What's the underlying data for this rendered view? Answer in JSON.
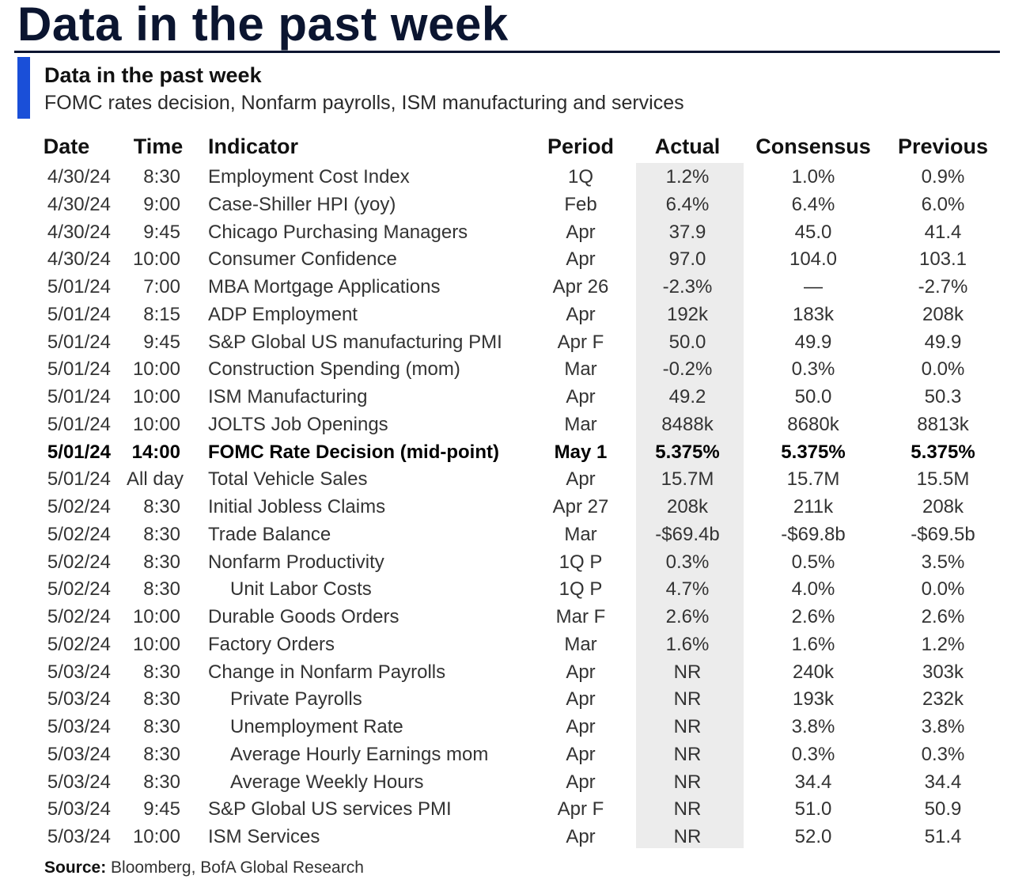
{
  "title": "Data in the past week",
  "subtitle": "Data in the past week",
  "description": "FOMC rates decision, Nonfarm payrolls, ISM manufacturing and services",
  "colors": {
    "accent": "#1a4fd8",
    "title": "#0b1530",
    "actual_shade": "#ececec"
  },
  "columns": {
    "date": "Date",
    "time": "Time",
    "indicator": "Indicator",
    "period": "Period",
    "actual": "Actual",
    "consensus": "Consensus",
    "previous": "Previous"
  },
  "rows": [
    {
      "date": "4/30/24",
      "time": "8:30",
      "indicator": "Employment Cost Index",
      "period": "1Q",
      "actual": "1.2%",
      "consensus": "1.0%",
      "previous": "0.9%"
    },
    {
      "date": "4/30/24",
      "time": "9:00",
      "indicator": "Case-Shiller HPI (yoy)",
      "period": "Feb",
      "actual": "6.4%",
      "consensus": "6.4%",
      "previous": "6.0%"
    },
    {
      "date": "4/30/24",
      "time": "9:45",
      "indicator": "Chicago Purchasing Managers",
      "period": "Apr",
      "actual": "37.9",
      "consensus": "45.0",
      "previous": "41.4"
    },
    {
      "date": "4/30/24",
      "time": "10:00",
      "indicator": "Consumer Confidence",
      "period": "Apr",
      "actual": "97.0",
      "consensus": "104.0",
      "previous": "103.1"
    },
    {
      "date": "5/01/24",
      "time": "7:00",
      "indicator": "MBA Mortgage Applications",
      "period": "Apr 26",
      "actual": "-2.3%",
      "consensus": "—",
      "previous": "-2.7%"
    },
    {
      "date": "5/01/24",
      "time": "8:15",
      "indicator": "ADP Employment",
      "period": "Apr",
      "actual": "192k",
      "consensus": "183k",
      "previous": "208k"
    },
    {
      "date": "5/01/24",
      "time": "9:45",
      "indicator": "S&P Global US manufacturing PMI",
      "period": "Apr F",
      "actual": "50.0",
      "consensus": "49.9",
      "previous": "49.9"
    },
    {
      "date": "5/01/24",
      "time": "10:00",
      "indicator": "Construction Spending (mom)",
      "period": "Mar",
      "actual": "-0.2%",
      "consensus": "0.3%",
      "previous": "0.0%"
    },
    {
      "date": "5/01/24",
      "time": "10:00",
      "indicator": "ISM Manufacturing",
      "period": "Apr",
      "actual": "49.2",
      "consensus": "50.0",
      "previous": "50.3"
    },
    {
      "date": "5/01/24",
      "time": "10:00",
      "indicator": "JOLTS Job Openings",
      "period": "Mar",
      "actual": "8488k",
      "consensus": "8680k",
      "previous": "8813k"
    },
    {
      "date": "5/01/24",
      "time": "14:00",
      "indicator": "FOMC Rate Decision (mid-point)",
      "period": "May 1",
      "actual": "5.375%",
      "consensus": "5.375%",
      "previous": "5.375%",
      "bold": true
    },
    {
      "date": "5/01/24",
      "time": "All day",
      "indicator": "Total Vehicle Sales",
      "period": "Apr",
      "actual": "15.7M",
      "consensus": "15.7M",
      "previous": "15.5M"
    },
    {
      "date": "5/02/24",
      "time": "8:30",
      "indicator": "Initial Jobless Claims",
      "period": "Apr 27",
      "actual": "208k",
      "consensus": "211k",
      "previous": "208k"
    },
    {
      "date": "5/02/24",
      "time": "8:30",
      "indicator": "Trade Balance",
      "period": "Mar",
      "actual": "-$69.4b",
      "consensus": "-$69.8b",
      "previous": "-$69.5b"
    },
    {
      "date": "5/02/24",
      "time": "8:30",
      "indicator": "Nonfarm Productivity",
      "period": "1Q P",
      "actual": "0.3%",
      "consensus": "0.5%",
      "previous": "3.5%"
    },
    {
      "date": "5/02/24",
      "time": "8:30",
      "indicator": "Unit Labor Costs",
      "period": "1Q P",
      "actual": "4.7%",
      "consensus": "4.0%",
      "previous": "0.0%",
      "indent": true
    },
    {
      "date": "5/02/24",
      "time": "10:00",
      "indicator": "Durable Goods Orders",
      "period": "Mar F",
      "actual": "2.6%",
      "consensus": "2.6%",
      "previous": "2.6%"
    },
    {
      "date": "5/02/24",
      "time": "10:00",
      "indicator": "Factory Orders",
      "period": "Mar",
      "actual": "1.6%",
      "consensus": "1.6%",
      "previous": "1.2%"
    },
    {
      "date": "5/03/24",
      "time": "8:30",
      "indicator": "Change in Nonfarm Payrolls",
      "period": "Apr",
      "actual": "NR",
      "consensus": "240k",
      "previous": "303k"
    },
    {
      "date": "5/03/24",
      "time": "8:30",
      "indicator": "Private Payrolls",
      "period": "Apr",
      "actual": "NR",
      "consensus": "193k",
      "previous": "232k",
      "indent": true
    },
    {
      "date": "5/03/24",
      "time": "8:30",
      "indicator": "Unemployment Rate",
      "period": "Apr",
      "actual": "NR",
      "consensus": "3.8%",
      "previous": "3.8%",
      "indent": true
    },
    {
      "date": "5/03/24",
      "time": "8:30",
      "indicator": "Average Hourly Earnings mom",
      "period": "Apr",
      "actual": "NR",
      "consensus": "0.3%",
      "previous": "0.3%",
      "indent": true
    },
    {
      "date": "5/03/24",
      "time": "8:30",
      "indicator": "Average Weekly Hours",
      "period": "Apr",
      "actual": "NR",
      "consensus": "34.4",
      "previous": "34.4",
      "indent": true
    },
    {
      "date": "5/03/24",
      "time": "9:45",
      "indicator": "S&P Global US services PMI",
      "period": "Apr F",
      "actual": "NR",
      "consensus": "51.0",
      "previous": "50.9"
    },
    {
      "date": "5/03/24",
      "time": "10:00",
      "indicator": "ISM Services",
      "period": "Apr",
      "actual": "NR",
      "consensus": "52.0",
      "previous": "51.4"
    }
  ],
  "source": {
    "label": "Source:",
    "text": "Bloomberg, BofA Global Research"
  }
}
